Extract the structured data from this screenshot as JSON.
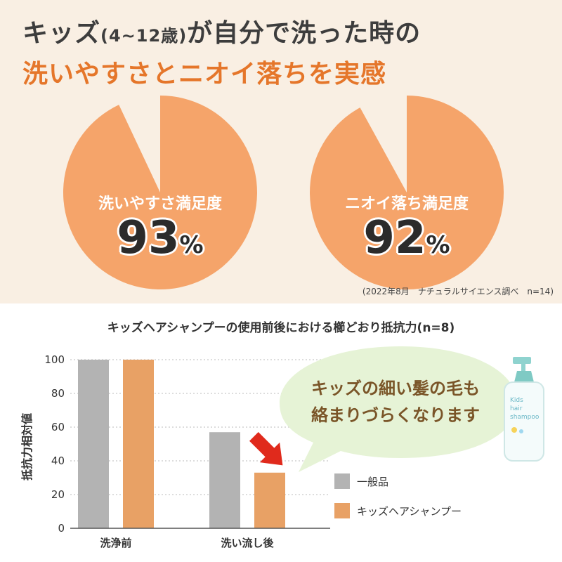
{
  "header": {
    "line1_pre": "キッズ",
    "line1_age": "(4~12歳)",
    "line1_post": "が自分で洗った時の",
    "line2": "洗いやすさとニオイ落ちを実感"
  },
  "pies": [
    {
      "label": "洗いやすさ満足度",
      "value": 93,
      "value_text": "93",
      "unit": "%"
    },
    {
      "label": "ニオイ落ち満足度",
      "value": 92,
      "value_text": "92",
      "unit": "%"
    }
  ],
  "source_note": "(2022年8月　ナチュラルサイエンス調べ　n=14)",
  "chart_data": {
    "type": "bar",
    "title": "キッズヘアシャンプーの使用前後における櫛どおり抵抗力(n=8)",
    "ylabel": "抵抗力相対値",
    "xlabel": "",
    "categories": [
      "洗浄前",
      "洗い流し後"
    ],
    "series": [
      {
        "name": "一般品",
        "values": [
          100,
          57
        ],
        "color": "#b3b3b3"
      },
      {
        "name": "キッズヘアシャンプー",
        "values": [
          100,
          33
        ],
        "color": "#e8a165"
      }
    ],
    "ylim": [
      0,
      100
    ],
    "yticks": [
      0,
      20,
      40,
      60,
      80,
      100
    ],
    "grid": true,
    "legend_position": "right"
  },
  "callout": {
    "line1": "キッズの細い髪の毛も",
    "line2": "絡まりづらくなります"
  },
  "bottle": {
    "line1": "Kids",
    "line2": "hair",
    "line3": "shampoo"
  },
  "colors": {
    "accent": "#e5762a",
    "pie_fill": "#f5a46a",
    "top_bg": "#f9efe3",
    "bubble": "#e6f3d6",
    "arrow": "#e02a1c",
    "gray_bar": "#b3b3b3",
    "orange_bar": "#e8a165"
  }
}
